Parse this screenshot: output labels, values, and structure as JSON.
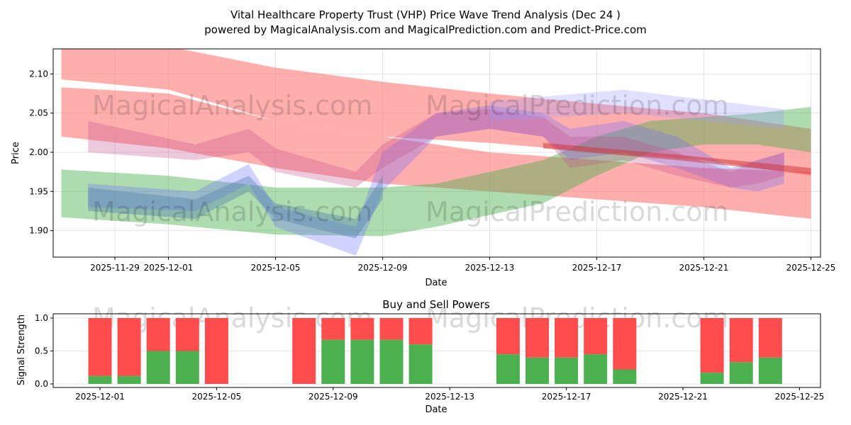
{
  "chart_data": [
    {
      "type": "area",
      "title": "Vital Healthcare Property Trust (VHP) Price Wave Trend Analysis (Dec 24 )",
      "subtitle": "powered by MagicalAnalysis.com and MagicalPrediction.com and Predict-Price.com",
      "xlabel": "Date",
      "ylabel": "Price",
      "ylim": [
        1.865,
        2.133
      ],
      "xlim": [
        "2025-11-26.7",
        "2025-12-25.35"
      ],
      "yticks": [
        "1.90",
        "1.95",
        "2.00",
        "2.05",
        "2.10"
      ],
      "xticks": [
        "2025-11-29",
        "2025-12-01",
        "2025-12-05",
        "2025-12-09",
        "2025-12-13",
        "2025-12-17",
        "2025-12-21",
        "2025-12-25"
      ],
      "grid": true,
      "watermarks": [
        "MagicalAnalysis.com",
        "MagicalPrediction.com",
        "MagicalAnalysis.com",
        "MagicalPrediction.com"
      ],
      "bands": [
        {
          "color": "#ff6b6b",
          "opacity": 0.55,
          "points": [
            [
              "2025-11-27",
              2.093,
              2.14
            ],
            [
              "2025-12-01",
              2.08,
              2.135
            ],
            [
              "2025-12-05",
              2.04,
              2.108
            ],
            [
              "2025-12-09",
              2.02,
              2.09
            ],
            [
              "2025-12-13",
              2.012,
              2.075
            ],
            [
              "2025-12-17",
              2.0,
              2.062
            ],
            [
              "2025-12-21",
              1.99,
              2.05
            ],
            [
              "2025-12-25",
              1.97,
              2.03
            ]
          ]
        },
        {
          "color": "#ff6b6b",
          "opacity": 0.55,
          "points": [
            [
              "2025-11-27",
              2.02,
              2.083
            ],
            [
              "2025-12-01",
              2.005,
              2.075
            ],
            [
              "2025-12-05",
              1.98,
              2.04
            ],
            [
              "2025-12-09",
              1.96,
              2.02
            ],
            [
              "2025-12-13",
              1.95,
              2.0
            ],
            [
              "2025-12-17",
              1.94,
              1.99
            ],
            [
              "2025-12-21",
              1.93,
              1.98
            ],
            [
              "2025-12-25",
              1.915,
              1.975
            ]
          ]
        },
        {
          "color": "#4caf50",
          "opacity": 0.45,
          "points": [
            [
              "2025-11-27",
              1.917,
              1.978
            ],
            [
              "2025-12-01",
              1.908,
              1.97
            ],
            [
              "2025-12-05",
              1.895,
              1.955
            ],
            [
              "2025-12-09",
              1.893,
              1.955
            ],
            [
              "2025-12-11",
              1.905,
              1.96
            ],
            [
              "2025-12-13",
              1.92,
              1.975
            ],
            [
              "2025-12-15",
              1.935,
              1.99
            ],
            [
              "2025-12-17",
              1.97,
              2.02
            ],
            [
              "2025-12-19",
              2.0,
              2.04
            ],
            [
              "2025-12-21",
              2.01,
              2.045
            ],
            [
              "2025-12-23",
              2.01,
              2.05
            ],
            [
              "2025-12-25",
              2.0,
              2.058
            ]
          ]
        },
        {
          "color": "#6b6bff",
          "opacity": 0.3,
          "points": [
            [
              "2025-11-28",
              1.93,
              1.96
            ],
            [
              "2025-12-02",
              1.925,
              1.95
            ],
            [
              "2025-12-04",
              1.96,
              1.985
            ],
            [
              "2025-12-05",
              1.905,
              1.93
            ],
            [
              "2025-12-08",
              1.868,
              1.905
            ],
            [
              "2025-12-09",
              1.95,
              2.0
            ],
            [
              "2025-12-11",
              2.02,
              2.05
            ],
            [
              "2025-12-13",
              2.03,
              2.06
            ],
            [
              "2025-12-15",
              2.02,
              2.05
            ],
            [
              "2025-12-16",
              1.99,
              2.03
            ],
            [
              "2025-12-18",
              2.0,
              2.04
            ],
            [
              "2025-12-20",
              1.98,
              2.02
            ],
            [
              "2025-12-22",
              1.955,
              1.98
            ],
            [
              "2025-12-23",
              1.95,
              1.99
            ],
            [
              "2025-12-24",
              1.96,
              2.0
            ]
          ]
        },
        {
          "color": "#4f7fb0",
          "opacity": 0.4,
          "points": [
            [
              "2025-11-28",
              1.925,
              1.955
            ],
            [
              "2025-12-02",
              1.915,
              1.94
            ],
            [
              "2025-12-04",
              1.95,
              1.97
            ],
            [
              "2025-12-05",
              1.915,
              1.935
            ],
            [
              "2025-12-08",
              1.89,
              1.915
            ],
            [
              "2025-12-09",
              1.94,
              1.97
            ]
          ]
        },
        {
          "color": "#c0508a",
          "opacity": 0.3,
          "points": [
            [
              "2025-11-28",
              2.0,
              2.04
            ],
            [
              "2025-12-02",
              1.99,
              2.01
            ],
            [
              "2025-12-04",
              2.0,
              2.03
            ],
            [
              "2025-12-05",
              1.975,
              2.005
            ],
            [
              "2025-12-08",
              1.955,
              1.975
            ],
            [
              "2025-12-09",
              1.98,
              2.01
            ],
            [
              "2025-12-11",
              2.02,
              2.05
            ],
            [
              "2025-12-13",
              2.03,
              2.055
            ],
            [
              "2025-12-15",
              2.02,
              2.045
            ],
            [
              "2025-12-16",
              1.98,
              2.02
            ],
            [
              "2025-12-18",
              1.99,
              2.02
            ],
            [
              "2025-12-20",
              1.97,
              2.0
            ],
            [
              "2025-12-22",
              1.955,
              1.975
            ],
            [
              "2025-12-23",
              1.96,
              1.99
            ],
            [
              "2025-12-24",
              1.97,
              2.0
            ]
          ]
        },
        {
          "color": "#9b9bff",
          "opacity": 0.3,
          "points": [
            [
              "2025-12-13",
              2.04,
              2.065
            ],
            [
              "2025-12-18",
              2.05,
              2.08
            ],
            [
              "2025-12-24",
              2.03,
              2.055
            ]
          ]
        },
        {
          "color": "#d03030",
          "opacity": 0.5,
          "points": [
            [
              "2025-12-15",
              2.005,
              2.012
            ],
            [
              "2025-12-20",
              1.99,
              1.997
            ],
            [
              "2025-12-25",
              1.972,
              1.98
            ]
          ]
        }
      ]
    },
    {
      "type": "bar",
      "title": "Buy and Sell Powers",
      "xlabel": "Date",
      "ylabel": "Signal Strength",
      "ylim": [
        0,
        1.05
      ],
      "yticks": [
        "0.0",
        "0.5",
        "1.0"
      ],
      "xticks": [
        "2025-12-01",
        "2025-12-05",
        "2025-12-09",
        "2025-12-13",
        "2025-12-17",
        "2025-12-21",
        "2025-12-25"
      ],
      "watermarks": [
        "MagicalAnalysis.com",
        "MagicalPrediction.com"
      ],
      "colors": {
        "buy": "#4caf50",
        "sell": "#ff4c4c"
      },
      "dates": [
        "2025-12-01",
        "2025-12-02",
        "2025-12-03",
        "2025-12-04",
        "2025-12-05",
        "2025-12-08",
        "2025-12-09",
        "2025-12-10",
        "2025-12-11",
        "2025-12-12",
        "2025-12-15",
        "2025-12-16",
        "2025-12-17",
        "2025-12-18",
        "2025-12-19",
        "2025-12-22",
        "2025-12-23",
        "2025-12-24"
      ],
      "buy": [
        0.12,
        0.12,
        0.5,
        0.5,
        0,
        0,
        0.67,
        0.67,
        0.67,
        0.6,
        0.45,
        0.4,
        0.4,
        0.45,
        0.22,
        0.17,
        0.33,
        0.4
      ]
    }
  ]
}
